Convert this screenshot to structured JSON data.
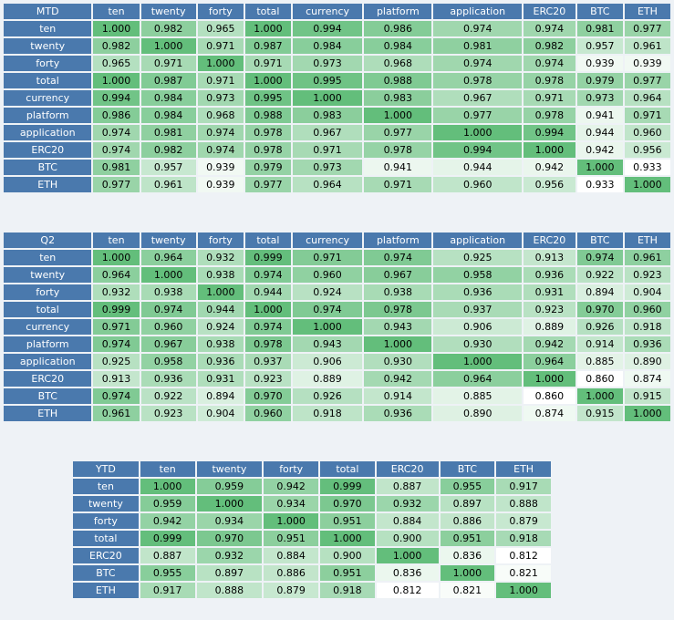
{
  "colors": {
    "header_bg": "#4a79ad",
    "header_text": "#ffffff",
    "cell_low": "#ffffff",
    "cell_high": "#63be7b",
    "page_bg": "#eef2f6"
  },
  "tables": [
    {
      "id": "mtd",
      "title": "MTD",
      "columns": [
        "ten",
        "twenty",
        "forty",
        "total",
        "currency",
        "platform",
        "application",
        "ERC20",
        "BTC",
        "ETH"
      ],
      "rows": [
        {
          "label": "ten",
          "values": [
            "1.000",
            "0.982",
            "0.965",
            "1.000",
            "0.994",
            "0.986",
            "0.974",
            "0.974",
            "0.981",
            "0.977"
          ]
        },
        {
          "label": "twenty",
          "values": [
            "0.982",
            "1.000",
            "0.971",
            "0.987",
            "0.984",
            "0.984",
            "0.981",
            "0.982",
            "0.957",
            "0.961"
          ]
        },
        {
          "label": "forty",
          "values": [
            "0.965",
            "0.971",
            "1.000",
            "0.971",
            "0.973",
            "0.968",
            "0.974",
            "0.974",
            "0.939",
            "0.939"
          ]
        },
        {
          "label": "total",
          "values": [
            "1.000",
            "0.987",
            "0.971",
            "1.000",
            "0.995",
            "0.988",
            "0.978",
            "0.978",
            "0.979",
            "0.977"
          ]
        },
        {
          "label": "currency",
          "values": [
            "0.994",
            "0.984",
            "0.973",
            "0.995",
            "1.000",
            "0.983",
            "0.967",
            "0.971",
            "0.973",
            "0.964"
          ]
        },
        {
          "label": "platform",
          "values": [
            "0.986",
            "0.984",
            "0.968",
            "0.988",
            "0.983",
            "1.000",
            "0.977",
            "0.978",
            "0.941",
            "0.971"
          ]
        },
        {
          "label": "application",
          "values": [
            "0.974",
            "0.981",
            "0.974",
            "0.978",
            "0.967",
            "0.977",
            "1.000",
            "0.994",
            "0.944",
            "0.960"
          ]
        },
        {
          "label": "ERC20",
          "values": [
            "0.974",
            "0.982",
            "0.974",
            "0.978",
            "0.971",
            "0.978",
            "0.994",
            "1.000",
            "0.942",
            "0.956"
          ]
        },
        {
          "label": "BTC",
          "values": [
            "0.981",
            "0.957",
            "0.939",
            "0.979",
            "0.973",
            "0.941",
            "0.944",
            "0.942",
            "1.000",
            "0.933"
          ]
        },
        {
          "label": "ETH",
          "values": [
            "0.977",
            "0.961",
            "0.939",
            "0.977",
            "0.964",
            "0.971",
            "0.960",
            "0.956",
            "0.933",
            "1.000"
          ]
        }
      ]
    },
    {
      "id": "q2",
      "title": "Q2",
      "columns": [
        "ten",
        "twenty",
        "forty",
        "total",
        "currency",
        "platform",
        "application",
        "ERC20",
        "BTC",
        "ETH"
      ],
      "rows": [
        {
          "label": "ten",
          "values": [
            "1.000",
            "0.964",
            "0.932",
            "0.999",
            "0.971",
            "0.974",
            "0.925",
            "0.913",
            "0.974",
            "0.961"
          ]
        },
        {
          "label": "twenty",
          "values": [
            "0.964",
            "1.000",
            "0.938",
            "0.974",
            "0.960",
            "0.967",
            "0.958",
            "0.936",
            "0.922",
            "0.923"
          ]
        },
        {
          "label": "forty",
          "values": [
            "0.932",
            "0.938",
            "1.000",
            "0.944",
            "0.924",
            "0.938",
            "0.936",
            "0.931",
            "0.894",
            "0.904"
          ]
        },
        {
          "label": "total",
          "values": [
            "0.999",
            "0.974",
            "0.944",
            "1.000",
            "0.974",
            "0.978",
            "0.937",
            "0.923",
            "0.970",
            "0.960"
          ]
        },
        {
          "label": "currency",
          "values": [
            "0.971",
            "0.960",
            "0.924",
            "0.974",
            "1.000",
            "0.943",
            "0.906",
            "0.889",
            "0.926",
            "0.918"
          ]
        },
        {
          "label": "platform",
          "values": [
            "0.974",
            "0.967",
            "0.938",
            "0.978",
            "0.943",
            "1.000",
            "0.930",
            "0.942",
            "0.914",
            "0.936"
          ]
        },
        {
          "label": "application",
          "values": [
            "0.925",
            "0.958",
            "0.936",
            "0.937",
            "0.906",
            "0.930",
            "1.000",
            "0.964",
            "0.885",
            "0.890"
          ]
        },
        {
          "label": "ERC20",
          "values": [
            "0.913",
            "0.936",
            "0.931",
            "0.923",
            "0.889",
            "0.942",
            "0.964",
            "1.000",
            "0.860",
            "0.874"
          ]
        },
        {
          "label": "BTC",
          "values": [
            "0.974",
            "0.922",
            "0.894",
            "0.970",
            "0.926",
            "0.914",
            "0.885",
            "0.860",
            "1.000",
            "0.915"
          ]
        },
        {
          "label": "ETH",
          "values": [
            "0.961",
            "0.923",
            "0.904",
            "0.960",
            "0.918",
            "0.936",
            "0.890",
            "0.874",
            "0.915",
            "1.000"
          ]
        }
      ]
    },
    {
      "id": "ytd",
      "title": "YTD",
      "columns": [
        "ten",
        "twenty",
        "forty",
        "total",
        "ERC20",
        "BTC",
        "ETH"
      ],
      "rows": [
        {
          "label": "ten",
          "values": [
            "1.000",
            "0.959",
            "0.942",
            "0.999",
            "0.887",
            "0.955",
            "0.917"
          ]
        },
        {
          "label": "twenty",
          "values": [
            "0.959",
            "1.000",
            "0.934",
            "0.970",
            "0.932",
            "0.897",
            "0.888"
          ]
        },
        {
          "label": "forty",
          "values": [
            "0.942",
            "0.934",
            "1.000",
            "0.951",
            "0.884",
            "0.886",
            "0.879"
          ]
        },
        {
          "label": "total",
          "values": [
            "0.999",
            "0.970",
            "0.951",
            "1.000",
            "0.900",
            "0.951",
            "0.918"
          ]
        },
        {
          "label": "ERC20",
          "values": [
            "0.887",
            "0.932",
            "0.884",
            "0.900",
            "1.000",
            "0.836",
            "0.812"
          ]
        },
        {
          "label": "BTC",
          "values": [
            "0.955",
            "0.897",
            "0.886",
            "0.951",
            "0.836",
            "1.000",
            "0.821"
          ]
        },
        {
          "label": "ETH",
          "values": [
            "0.917",
            "0.888",
            "0.879",
            "0.918",
            "0.812",
            "0.821",
            "1.000"
          ]
        }
      ]
    }
  ]
}
